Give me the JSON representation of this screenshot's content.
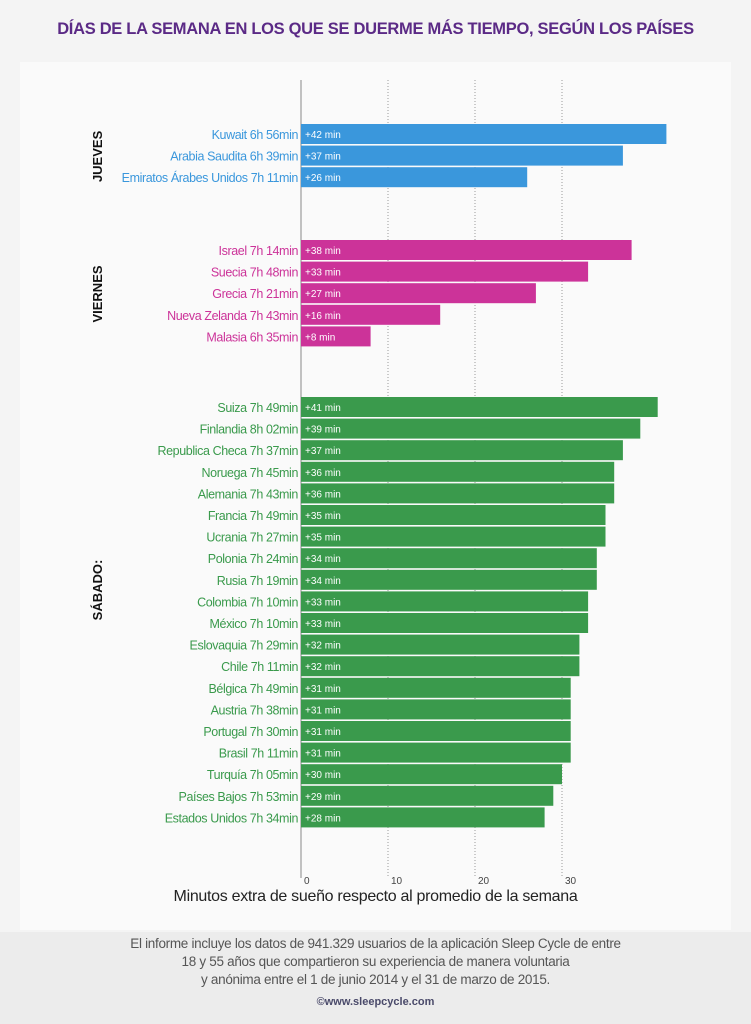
{
  "title": "DÍAS DE LA SEMANA EN LOS QUE SE DUERME MÁS TIEMPO, SEGÚN LOS PAÍSES",
  "chart_data": {
    "type": "bar",
    "orientation": "horizontal",
    "xlabel": "Minutos extra de sueño respecto al promedio de la semana",
    "xticks": [
      0,
      10,
      20,
      30
    ],
    "xlim": [
      0,
      42
    ],
    "grid": true,
    "groups": [
      {
        "name": "JUEVES",
        "color": "#3a97dc",
        "items": [
          {
            "country": "Kuwait",
            "avg": "6h 56min",
            "value": 42,
            "label": "+42 min"
          },
          {
            "country": "Arabia Saudita",
            "avg": "6h 39min",
            "value": 37,
            "label": "+37 min"
          },
          {
            "country": "Emiratos Árabes Unidos",
            "avg": "7h 11min",
            "value": 26,
            "label": "+26 min"
          }
        ]
      },
      {
        "name": "VIERNES",
        "color": "#cc3399",
        "items": [
          {
            "country": "Israel",
            "avg": "7h 14min",
            "value": 38,
            "label": "+38 min"
          },
          {
            "country": "Suecia",
            "avg": "7h 48min",
            "value": 33,
            "label": "+33 min"
          },
          {
            "country": "Grecia",
            "avg": "7h 21min",
            "value": 27,
            "label": "+27 min"
          },
          {
            "country": "Nueva Zelanda",
            "avg": "7h 43min",
            "value": 16,
            "label": "+16 min"
          },
          {
            "country": "Malasia",
            "avg": "6h 35min",
            "value": 8,
            "label": "+8 min"
          }
        ]
      },
      {
        "name": "SÁBADO:",
        "color": "#3a9a4c",
        "items": [
          {
            "country": "Suiza",
            "avg": "7h 49min",
            "value": 41,
            "label": "+41 min"
          },
          {
            "country": "Finlandia",
            "avg": "8h 02min",
            "value": 39,
            "label": "+39 min"
          },
          {
            "country": "Republica Checa",
            "avg": "7h 37min",
            "value": 37,
            "label": "+37 min"
          },
          {
            "country": "Noruega",
            "avg": "7h 45min",
            "value": 36,
            "label": "+36 min"
          },
          {
            "country": "Alemania",
            "avg": "7h 43min",
            "value": 36,
            "label": "+36 min"
          },
          {
            "country": "Francia",
            "avg": "7h 49min",
            "value": 35,
            "label": "+35 min"
          },
          {
            "country": "Ucrania",
            "avg": "7h 27min",
            "value": 35,
            "label": "+35 min"
          },
          {
            "country": "Polonia",
            "avg": "7h 24min",
            "value": 34,
            "label": "+34 min"
          },
          {
            "country": "Rusia",
            "avg": "7h 19min",
            "value": 34,
            "label": "+34 min"
          },
          {
            "country": "Colombia",
            "avg": "7h 10min",
            "value": 33,
            "label": "+33 min"
          },
          {
            "country": "México",
            "avg": "7h 10min",
            "value": 33,
            "label": "+33 min"
          },
          {
            "country": "Eslovaquia",
            "avg": "7h 29min",
            "value": 32,
            "label": "+32 min"
          },
          {
            "country": "Chile",
            "avg": "7h 11min",
            "value": 32,
            "label": "+32 min"
          },
          {
            "country": "Bélgica",
            "avg": "7h 49min",
            "value": 31,
            "label": "+31 min"
          },
          {
            "country": "Austria",
            "avg": "7h 38min",
            "value": 31,
            "label": "+31 min"
          },
          {
            "country": "Portugal",
            "avg": "7h 30min",
            "value": 31,
            "label": "+31 min"
          },
          {
            "country": "Brasil",
            "avg": "7h 11min",
            "value": 31,
            "label": "+31 min"
          },
          {
            "country": "Turquía",
            "avg": "7h 05min",
            "value": 30,
            "label": "+30 min"
          },
          {
            "country": "Países Bajos",
            "avg": "7h 53min",
            "value": 29,
            "label": "+29 min"
          },
          {
            "country": "Estados Unidos",
            "avg": "7h 34min",
            "value": 28,
            "label": "+28 min"
          }
        ]
      }
    ]
  },
  "footer": {
    "note_lines": [
      "El informe incluye los datos de 941.329 usuarios de la aplicación Sleep Cycle de entre",
      "18 y 55 años que compartieron su experiencia de manera voluntaria",
      "y anónima entre el 1 de junio 2014 y el 31 de marzo de 2015."
    ],
    "url": "©www.sleepcycle.com"
  }
}
